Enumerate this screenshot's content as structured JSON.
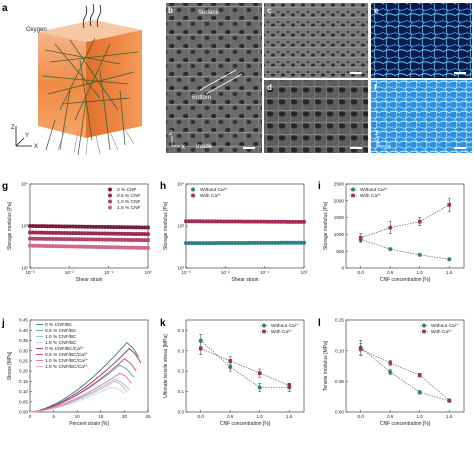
{
  "panels": {
    "a": {
      "label": "a",
      "oxygen": "Oxygen",
      "axis_z": "Z",
      "axis_y": "Y",
      "axis_x": "X"
    },
    "b": {
      "label": "b",
      "surface": "Surface",
      "bottom": "Bottom",
      "inside": "Inside",
      "inset_z": "Z",
      "inset_x": "X"
    },
    "c": {
      "label": "c"
    },
    "d": {
      "label": "d"
    },
    "e": {
      "label": "e"
    },
    "f": {
      "label": "f",
      "inset_z": "Z",
      "inset_x": "X"
    },
    "g": {
      "label": "g"
    },
    "h": {
      "label": "h"
    },
    "i": {
      "label": "i"
    },
    "j": {
      "label": "j"
    },
    "k": {
      "label": "k"
    },
    "l": {
      "label": "l"
    }
  },
  "colors": {
    "cnf0": "#7a1c3c",
    "cnf05": "#9b2a4d",
    "cnf10": "#b44468",
    "cnf15": "#cd6a88",
    "teal": "#2f7f86",
    "magenta": "#a62a5c"
  },
  "chart_data": [
    {
      "id": "g",
      "type": "scatter",
      "xlabel": "Shear strain",
      "ylabel": "Storage modulus [Pa]",
      "x_scale": "log",
      "y_scale": "log",
      "xlim": [
        0.001,
        1
      ],
      "ylim": [
        100,
        10000
      ],
      "x_ticks": [
        "10⁻³",
        "10⁻²",
        "10⁻¹",
        "10⁰"
      ],
      "y_ticks": [
        "10²",
        "10³",
        "10⁴"
      ],
      "legend_position": "top-right",
      "series": [
        {
          "name": "0 % CNF",
          "y_start": 1000,
          "y_end": 920,
          "color": "#7a1c3c"
        },
        {
          "name": "0.5 % CNF",
          "y_start": 700,
          "y_end": 640,
          "color": "#9b2a4d"
        },
        {
          "name": "1.0 % CNF",
          "y_start": 500,
          "y_end": 460,
          "color": "#b44468"
        },
        {
          "name": "1.5 % CNF",
          "y_start": 340,
          "y_end": 300,
          "color": "#cd6a88"
        }
      ]
    },
    {
      "id": "h",
      "type": "scatter",
      "xlabel": "Shear strain",
      "ylabel": "Storage modulus [Pa]",
      "x_scale": "log",
      "y_scale": "log",
      "xlim": [
        0.001,
        1
      ],
      "ylim": [
        100,
        10000
      ],
      "x_ticks": [
        "10⁻³",
        "10⁻²",
        "10⁻¹",
        "10⁰"
      ],
      "y_ticks": [
        "10²",
        "10³",
        "10⁴"
      ],
      "legend_position": "top-left",
      "series": [
        {
          "name": "Without Ca²⁺",
          "y_start": 390,
          "y_end": 400,
          "color": "#2f7f86"
        },
        {
          "name": "With Ca²⁺",
          "y_start": 1300,
          "y_end": 1250,
          "color": "#a62a5c"
        }
      ]
    },
    {
      "id": "i",
      "type": "line",
      "xlabel": "CNF concentration [%]",
      "ylabel": "Storage modulus [Pa]",
      "xlim": [
        -0.25,
        1.75
      ],
      "ylim": [
        0,
        2500
      ],
      "x_ticks": [
        0,
        0.5,
        1.0,
        1.5
      ],
      "x_tick_labels": [
        "0.0",
        "0.5",
        "1.0",
        "1.5"
      ],
      "y_ticks": [
        0,
        500,
        1000,
        1500,
        2000,
        2500
      ],
      "legend_position": "top-left",
      "series": [
        {
          "name": "Without Ca²⁺",
          "x": [
            0,
            0.5,
            1.0,
            1.5
          ],
          "y": [
            850,
            560,
            390,
            260
          ],
          "err": [
            80,
            30,
            20,
            20
          ],
          "color": "#2f7f86",
          "marker": "circle"
        },
        {
          "name": "With Ca²⁺",
          "x": [
            0,
            0.5,
            1.0,
            1.5
          ],
          "y": [
            900,
            1200,
            1380,
            1880
          ],
          "err": [
            120,
            180,
            120,
            200
          ],
          "color": "#a62a5c",
          "marker": "square"
        }
      ]
    },
    {
      "id": "j",
      "type": "line",
      "xlabel": "Percent strain [%]",
      "ylabel": "Stress [MPa]",
      "xlim": [
        0,
        25
      ],
      "ylim": [
        0,
        0.45
      ],
      "x_ticks": [
        0,
        5,
        10,
        15,
        20,
        25
      ],
      "y_ticks": [
        0,
        0.05,
        0.1,
        0.15,
        0.2,
        0.25,
        0.3,
        0.35,
        0.4,
        0.45
      ],
      "y_tick_labels": [
        "0.00",
        "0.05",
        "0.10",
        "0.15",
        "0.20",
        "0.25",
        "0.30",
        "0.35",
        "0.40",
        "0.45"
      ],
      "legend_position": "top-left",
      "series": [
        {
          "name": "0 % CNF/BC",
          "peak_x": 20.5,
          "peak_y": 0.34,
          "end_x": 23,
          "end_y": 0.27,
          "color": "#2f7f86"
        },
        {
          "name": "0.5 % CNF/BC",
          "peak_x": 19,
          "peak_y": 0.23,
          "end_x": 22,
          "end_y": 0.17,
          "color": "#5aa7b0"
        },
        {
          "name": "1.0 % CNF/BC",
          "peak_x": 18,
          "peak_y": 0.16,
          "end_x": 21,
          "end_y": 0.11,
          "color": "#8cc4cc"
        },
        {
          "name": "1.5 % CNF/BC",
          "peak_x": 17,
          "peak_y": 0.12,
          "end_x": 20,
          "end_y": 0.09,
          "color": "#b7dde2"
        },
        {
          "name": "0 % CNF/BC/Ca²⁺",
          "peak_x": 21,
          "peak_y": 0.31,
          "end_x": 23.5,
          "end_y": 0.24,
          "color": "#a62a5c"
        },
        {
          "name": "0.5 % CNF/BC/Ca²⁺",
          "peak_x": 20,
          "peak_y": 0.26,
          "end_x": 22.5,
          "end_y": 0.2,
          "color": "#c14f7a"
        },
        {
          "name": "1.0 % CNF/BC/Ca²⁺",
          "peak_x": 19,
          "peak_y": 0.19,
          "end_x": 21.5,
          "end_y": 0.14,
          "color": "#d97a9c"
        },
        {
          "name": "1.5 % CNF/BC/Ca²⁺",
          "peak_x": 18,
          "peak_y": 0.15,
          "end_x": 20.5,
          "end_y": 0.1,
          "color": "#e9a6bf"
        }
      ]
    },
    {
      "id": "k",
      "type": "line",
      "xlabel": "CNF concentration [%]",
      "ylabel": "Ultimate tensile stress [MPa]",
      "xlim": [
        -0.25,
        1.75
      ],
      "ylim": [
        0,
        0.45
      ],
      "x_ticks": [
        0,
        0.5,
        1.0,
        1.5
      ],
      "x_tick_labels": [
        "0.0",
        "0.5",
        "1.0",
        "1.5"
      ],
      "y_ticks": [
        0,
        0.1,
        0.2,
        0.3,
        0.4
      ],
      "y_tick_labels": [
        "0.0",
        "0.1",
        "0.2",
        "0.3",
        "0.4"
      ],
      "legend_position": "top-right",
      "series": [
        {
          "name": "Without Ca²⁺",
          "x": [
            0,
            0.5,
            1.0,
            1.5
          ],
          "y": [
            0.35,
            0.22,
            0.12,
            0.12
          ],
          "err": [
            0.03,
            0.02,
            0.02,
            0.02
          ],
          "color": "#2f7f86",
          "marker": "circle"
        },
        {
          "name": "With Ca²⁺",
          "x": [
            0,
            0.5,
            1.0,
            1.5
          ],
          "y": [
            0.31,
            0.25,
            0.19,
            0.13
          ],
          "err": [
            0.03,
            0.02,
            0.02,
            0.01
          ],
          "color": "#a62a5c",
          "marker": "square"
        }
      ]
    },
    {
      "id": "l",
      "type": "line",
      "xlabel": "CNF concentration [%]",
      "ylabel": "Tensile modulus [MPa]",
      "xlim": [
        -0.25,
        1.75
      ],
      "ylim": [
        0,
        0.15
      ],
      "x_ticks": [
        0,
        0.5,
        1.0,
        1.5
      ],
      "x_tick_labels": [
        "0.0",
        "0.5",
        "1.0",
        "1.5"
      ],
      "y_ticks": [
        0,
        0.05,
        0.1,
        0.15
      ],
      "y_tick_labels": [
        "0.00",
        "0.05",
        "0.10",
        "0.15"
      ],
      "legend_position": "top-right",
      "series": [
        {
          "name": "Without Ca²⁺",
          "x": [
            0,
            0.5,
            1.0,
            1.5
          ],
          "y": [
            0.105,
            0.065,
            0.032,
            0.018
          ],
          "err": [
            0.012,
            0.004,
            0.003,
            0.002
          ],
          "color": "#2f7f86",
          "marker": "circle"
        },
        {
          "name": "With Ca²⁺",
          "x": [
            0,
            0.5,
            1.0,
            1.5
          ],
          "y": [
            0.102,
            0.08,
            0.06,
            0.019
          ],
          "err": [
            0.01,
            0.004,
            0.003,
            0.002
          ],
          "color": "#a62a5c",
          "marker": "square"
        }
      ]
    }
  ]
}
